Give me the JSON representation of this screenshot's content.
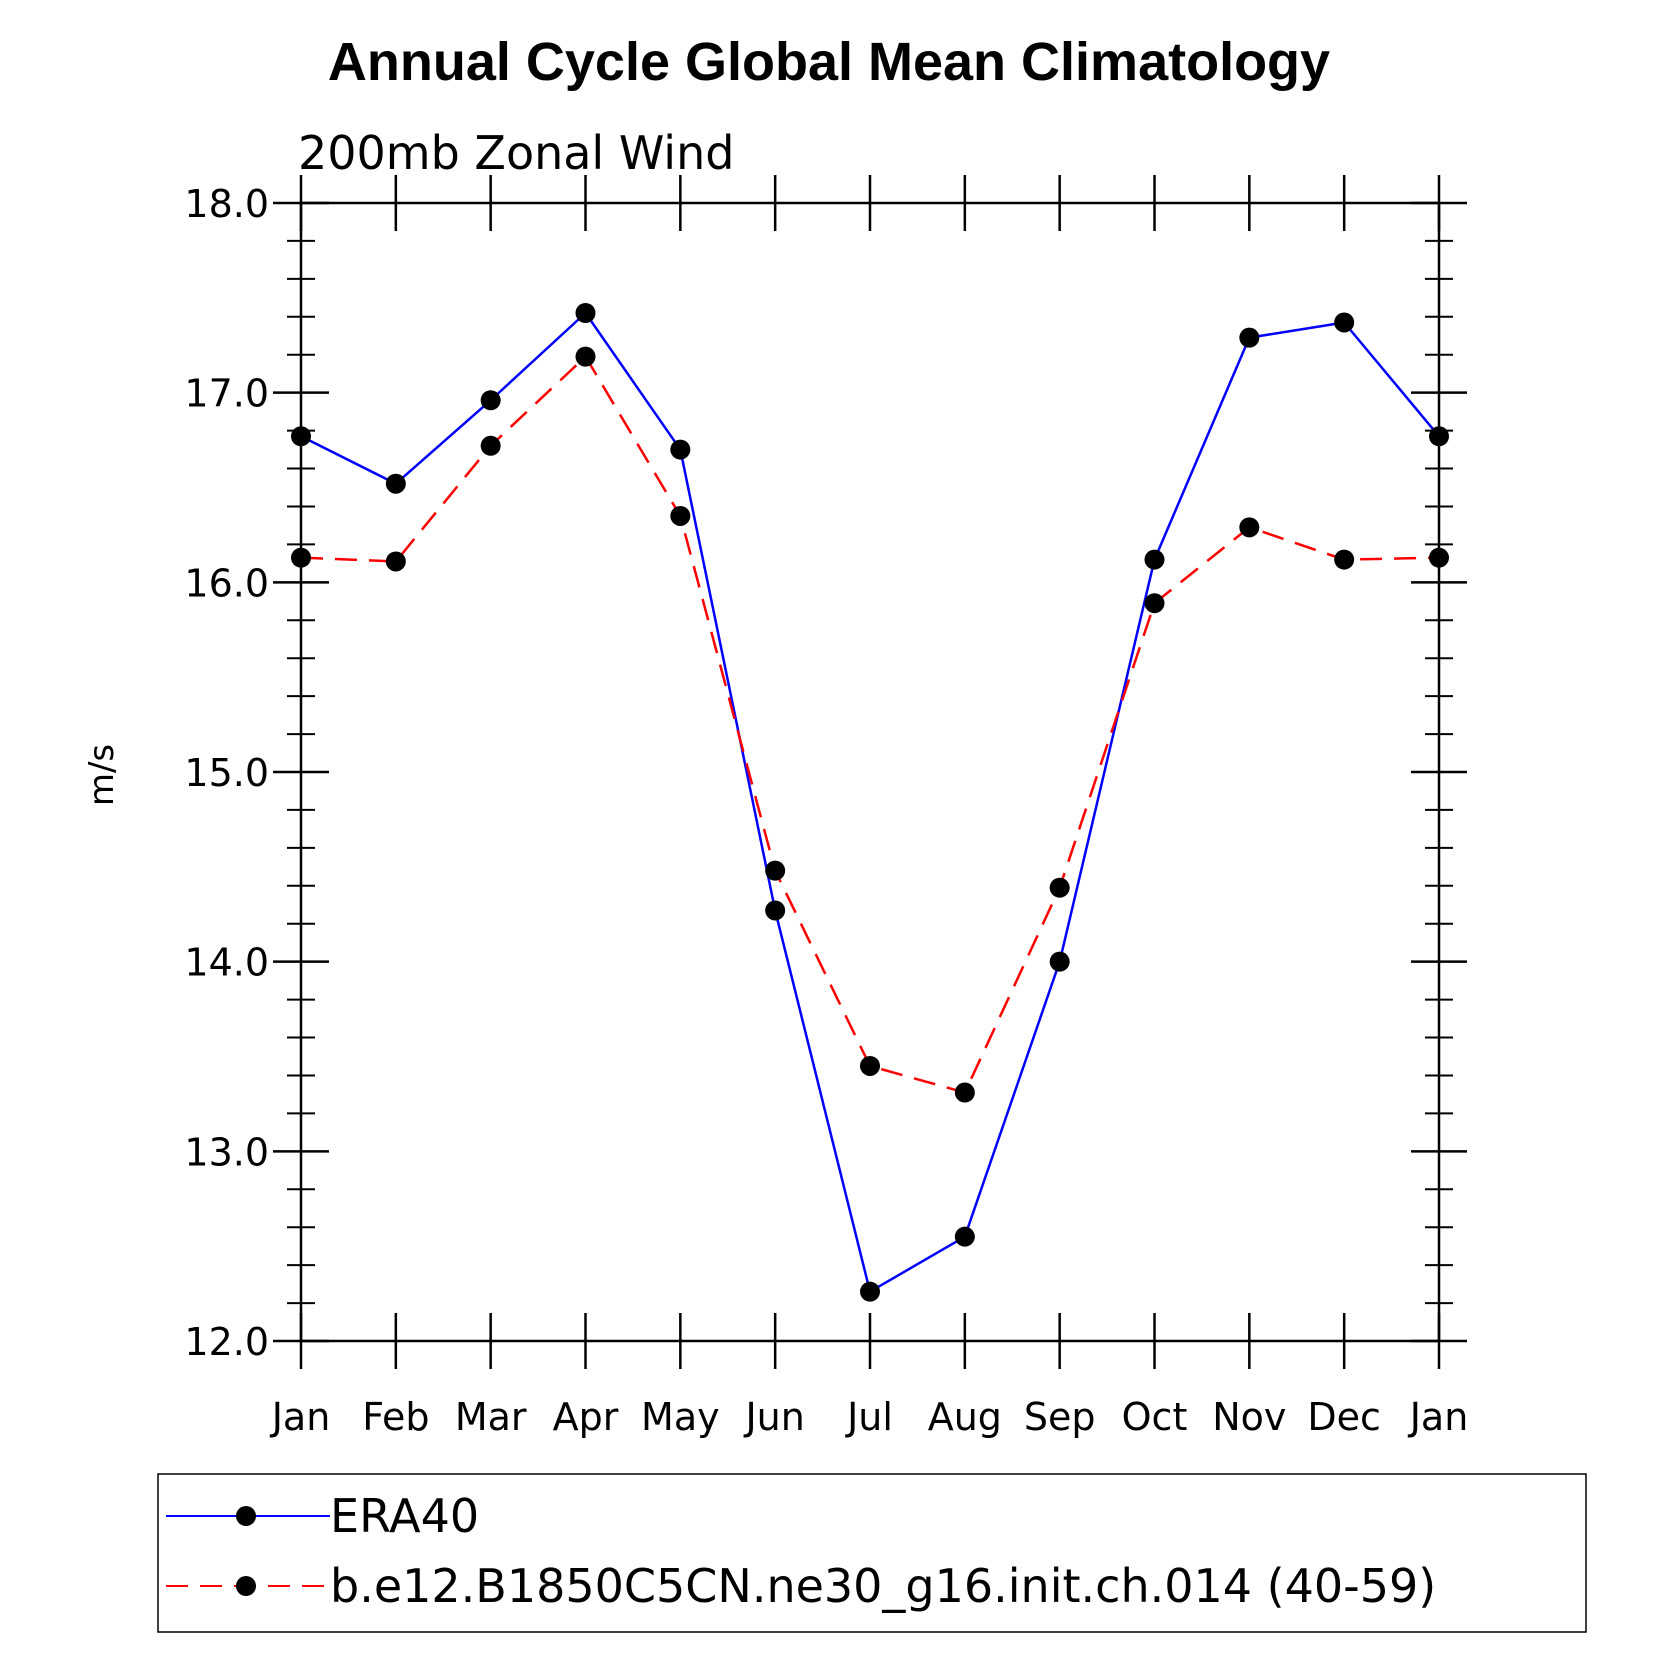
{
  "chart_data": {
    "type": "line",
    "title": "Annual Cycle Global Mean Climatology",
    "subtitle": "200mb Zonal Wind",
    "xlabel": "",
    "ylabel": "m/s",
    "categories": [
      "Jan",
      "Feb",
      "Mar",
      "Apr",
      "May",
      "Jun",
      "Jul",
      "Aug",
      "Sep",
      "Oct",
      "Nov",
      "Dec",
      "Jan"
    ],
    "ylim": [
      12.0,
      18.0
    ],
    "y_ticks": [
      "12.0",
      "13.0",
      "14.0",
      "15.0",
      "16.0",
      "17.0",
      "18.0"
    ],
    "y_minor_step": 0.2,
    "grid": false,
    "legend_position": "bottom",
    "series": [
      {
        "name": "ERA40",
        "color": "#0000ff",
        "line_style": "solid",
        "marker": "filled-circle",
        "values": [
          16.77,
          16.52,
          16.96,
          17.42,
          16.7,
          14.27,
          12.26,
          12.55,
          14.0,
          16.12,
          17.29,
          17.37,
          16.77
        ]
      },
      {
        "name": "b.e12.B1850C5CN.ne30_g16.init.ch.014 (40-59)",
        "color": "#ff0000",
        "line_style": "dashed",
        "marker": "filled-circle",
        "values": [
          16.13,
          16.11,
          16.72,
          17.19,
          16.35,
          14.48,
          13.45,
          13.31,
          14.39,
          15.89,
          16.29,
          16.12,
          16.13
        ]
      }
    ]
  }
}
